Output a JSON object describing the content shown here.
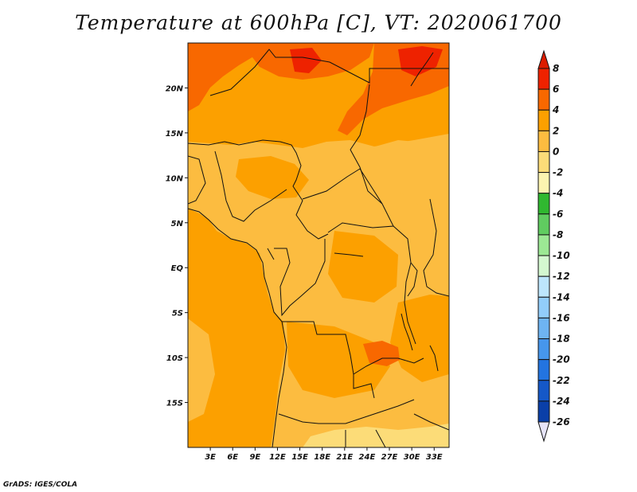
{
  "title": "Temperature at 600hPa [C], VT: 2020061700",
  "credit": "GrADS: IGES/COLA",
  "map": {
    "lon_range": [
      0,
      35
    ],
    "lat_range": [
      -20,
      25
    ],
    "lat_ticks": [
      {
        "label": "20N",
        "value": 20
      },
      {
        "label": "15N",
        "value": 15
      },
      {
        "label": "10N",
        "value": 10
      },
      {
        "label": "5N",
        "value": 5
      },
      {
        "label": "EQ",
        "value": 0
      },
      {
        "label": "5S",
        "value": -5
      },
      {
        "label": "10S",
        "value": -10
      },
      {
        "label": "15S",
        "value": -15
      }
    ],
    "lon_ticks": [
      {
        "label": "3E",
        "value": 3
      },
      {
        "label": "6E",
        "value": 6
      },
      {
        "label": "9E",
        "value": 9
      },
      {
        "label": "12E",
        "value": 12
      },
      {
        "label": "15E",
        "value": 15
      },
      {
        "label": "18E",
        "value": 18
      },
      {
        "label": "21E",
        "value": 21
      },
      {
        "label": "24E",
        "value": 24
      },
      {
        "label": "27E",
        "value": 27
      },
      {
        "label": "30E",
        "value": 30
      },
      {
        "label": "33E",
        "value": 33
      }
    ]
  },
  "colorbar": {
    "levels": [
      "8",
      "6",
      "4",
      "2",
      "0",
      "-2",
      "-4",
      "-6",
      "-8",
      "-10",
      "-12",
      "-14",
      "-16",
      "-18",
      "-20",
      "-22",
      "-24",
      "-26"
    ],
    "colors": [
      "#ee2200",
      "#f86800",
      "#fca000",
      "#fcbc40",
      "#fcdc78",
      "#fcf4b0",
      "#30b830",
      "#60cc60",
      "#9ce894",
      "#d4f8d0",
      "#bde6fc",
      "#92cdfa",
      "#6eb4f2",
      "#4696ec",
      "#2374e0",
      "#1558c8",
      "#0a3fa8",
      "#001c74"
    ],
    "top_color": "#dc1c00",
    "bottom_color": "#e6e4f8"
  },
  "fill_colors": {
    "base": "#fcbc40",
    "mid": "#fca000",
    "warm": "#f86800",
    "hot": "#ee2200",
    "cool": "#fcdc78",
    "ocean": "#fca000"
  }
}
